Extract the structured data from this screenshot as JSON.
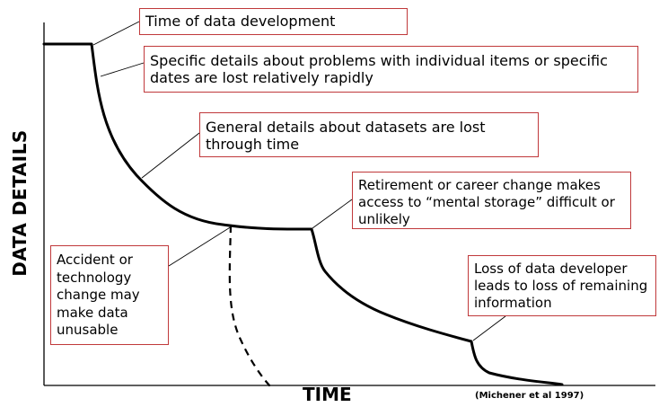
{
  "axes": {
    "y_label": "DATA DETAILS",
    "x_label": "TIME"
  },
  "citation": "(Michener et al 1997)",
  "callouts": {
    "time_of_development": "Time of data development",
    "specific_details": "Specific details about problems with individual items or specific dates are lost relatively rapidly",
    "general_details": "General details about datasets are lost through time",
    "retirement": "Retirement or career change makes access to “mental storage” difficult or unlikely",
    "loss_of_developer": "Loss of data developer leads to loss of remaining information",
    "accident": "Accident or technology change may make data unusable"
  },
  "colors": {
    "callout_border": "#c0393b",
    "curve": "#000000",
    "axis": "#000000"
  }
}
